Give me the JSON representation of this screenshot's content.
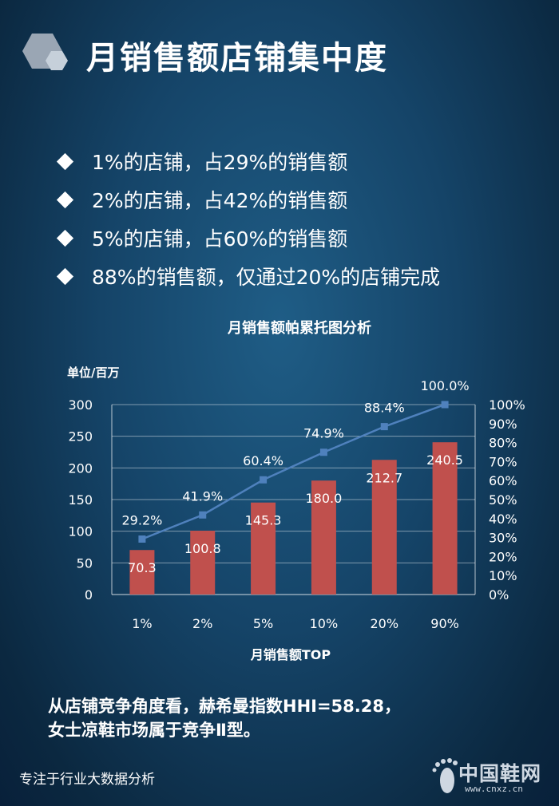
{
  "title": "月销售额店铺集中度",
  "bullets": [
    "1%的店铺，占29%的销售额",
    "2%的店铺，占42%的销售额",
    "5%的店铺，占60%的销售额",
    "88%的销售额，仅通过20%的店铺完成"
  ],
  "chart_data": {
    "type": "bar",
    "title": "月销售额帕累托图分析",
    "unit_label": "单位/百万",
    "xlabel": "月销售额TOP",
    "categories": [
      "1%",
      "2%",
      "5%",
      "10%",
      "20%",
      "90%"
    ],
    "series": [
      {
        "type": "bar",
        "values": [
          70.3,
          100.8,
          145.3,
          180.0,
          212.7,
          240.5
        ],
        "labels": [
          "70.3",
          "100.8",
          "145.3",
          "180.0",
          "212.7",
          "240.5"
        ],
        "color": "#c0504d"
      },
      {
        "type": "line",
        "values": [
          29.2,
          41.9,
          60.4,
          74.9,
          88.4,
          100.0
        ],
        "labels": [
          "29.2%",
          "41.9%",
          "60.4%",
          "74.9%",
          "88.4%",
          "100.0%"
        ],
        "color": "#4f81bd"
      }
    ],
    "y_left": {
      "range": [
        0,
        300
      ],
      "ticks": [
        "0",
        "50",
        "100",
        "150",
        "200",
        "250",
        "300"
      ]
    },
    "y_right": {
      "range": [
        0,
        100
      ],
      "ticks": [
        "0%",
        "10%",
        "20%",
        "30%",
        "40%",
        "50%",
        "60%",
        "70%",
        "80%",
        "90%",
        "100%"
      ]
    },
    "grid": true
  },
  "conclusion": {
    "line1": "从店铺竞争角度看，赫希曼指数HHI=58.28，",
    "line2": "女士凉鞋市场属于竞争Ⅱ型。"
  },
  "footer": "专注于行业大数据分析",
  "logo": {
    "name": "中国鞋网",
    "url": "www.cnxz.cn"
  }
}
